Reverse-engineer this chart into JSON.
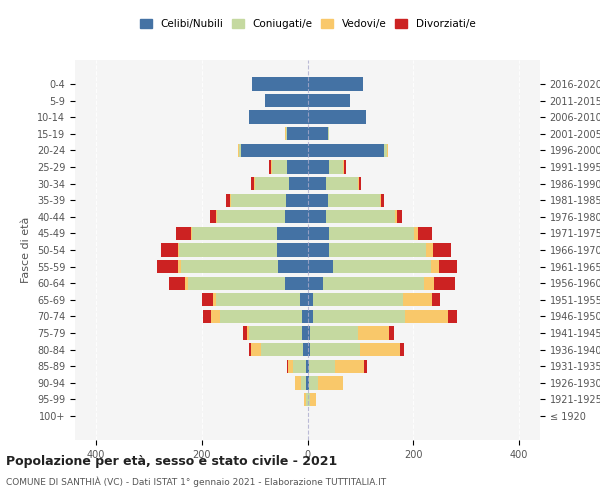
{
  "age_groups": [
    "100+",
    "95-99",
    "90-94",
    "85-89",
    "80-84",
    "75-79",
    "70-74",
    "65-69",
    "60-64",
    "55-59",
    "50-54",
    "45-49",
    "40-44",
    "35-39",
    "30-34",
    "25-29",
    "20-24",
    "15-19",
    "10-14",
    "5-9",
    "0-4"
  ],
  "birth_years": [
    "≤ 1920",
    "1921-1925",
    "1926-1930",
    "1931-1935",
    "1936-1940",
    "1941-1945",
    "1946-1950",
    "1951-1955",
    "1956-1960",
    "1961-1965",
    "1966-1970",
    "1971-1975",
    "1976-1980",
    "1981-1985",
    "1986-1990",
    "1991-1995",
    "1996-2000",
    "2001-2005",
    "2006-2010",
    "2011-2015",
    "2016-2020"
  ],
  "male": {
    "celibi": [
      0,
      0,
      2,
      2,
      8,
      10,
      10,
      14,
      42,
      55,
      58,
      58,
      42,
      40,
      35,
      38,
      125,
      38,
      110,
      80,
      105
    ],
    "coniugati": [
      0,
      3,
      10,
      25,
      80,
      100,
      155,
      160,
      185,
      185,
      185,
      160,
      130,
      105,
      65,
      30,
      5,
      2,
      0,
      0,
      0
    ],
    "vedovi": [
      0,
      3,
      12,
      10,
      18,
      5,
      18,
      5,
      5,
      5,
      2,
      2,
      2,
      2,
      2,
      2,
      2,
      2,
      0,
      0,
      0
    ],
    "divorziati": [
      0,
      0,
      0,
      2,
      5,
      8,
      15,
      20,
      30,
      40,
      32,
      28,
      10,
      8,
      5,
      3,
      0,
      0,
      0,
      0,
      0
    ]
  },
  "female": {
    "nubili": [
      0,
      0,
      2,
      2,
      5,
      5,
      10,
      10,
      30,
      48,
      40,
      40,
      35,
      38,
      35,
      40,
      145,
      38,
      110,
      80,
      105
    ],
    "coniugate": [
      0,
      5,
      18,
      50,
      95,
      90,
      175,
      170,
      190,
      185,
      185,
      162,
      130,
      100,
      60,
      28,
      5,
      2,
      0,
      0,
      0
    ],
    "vedove": [
      0,
      12,
      48,
      55,
      75,
      60,
      80,
      55,
      20,
      15,
      12,
      8,
      5,
      2,
      2,
      2,
      2,
      0,
      0,
      0,
      0
    ],
    "divorziate": [
      0,
      0,
      0,
      5,
      8,
      8,
      18,
      15,
      40,
      35,
      35,
      25,
      8,
      5,
      5,
      3,
      0,
      0,
      0,
      0,
      0
    ]
  },
  "colors": {
    "celibi": "#4472a4",
    "coniugati": "#c5d9a0",
    "vedovi": "#f9c86a",
    "divorziati": "#cc2222"
  },
  "xlim": 440,
  "title": "Popolazione per età, sesso e stato civile - 2021",
  "subtitle": "COMUNE DI SATHIÀ (VC) - Dati ISTAT 1° gennaio 2021 - Elaborazione TUTTITALIA.IT",
  "legend_labels": [
    "Celibi/Nubili",
    "Coniugati/e",
    "Vedovi/e",
    "Divorziati/e"
  ],
  "background_color": "#f5f5f5"
}
